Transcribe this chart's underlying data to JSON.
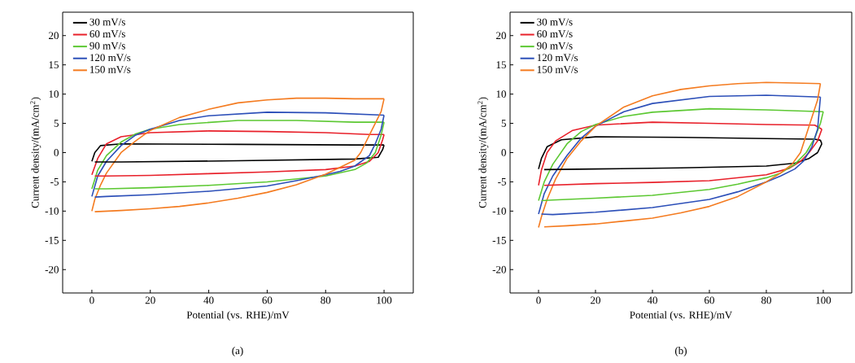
{
  "chart_data": [
    {
      "type": "line",
      "xlabel": "Potential (vs. RHE)/mV",
      "ylabel": "Current density/(mA/cm$^{2}$)",
      "annotations": [
        "(a)"
      ],
      "xlim": [
        -10,
        110
      ],
      "ylim": [
        -24,
        24
      ],
      "xticks": [
        0,
        20,
        40,
        60,
        80,
        100
      ],
      "yticks": [
        -20,
        -15,
        -10,
        -5,
        0,
        5,
        10,
        15,
        20
      ],
      "legend": "top left",
      "grid": false,
      "series": [
        {
          "name": "30 mV/s",
          "color": "#000000",
          "x": [
            0,
            1,
            3,
            10,
            50,
            90,
            100
          ],
          "values": [
            -1.5,
            0,
            1.2,
            1.5,
            1.4,
            1.3,
            1.3
          ]
        },
        {
          "name": "60 mV/s",
          "color": "#e8202a",
          "x": [
            0,
            2,
            5,
            10,
            20,
            40,
            60,
            80,
            95,
            100
          ],
          "values": [
            -3.8,
            -1,
            1.5,
            2.7,
            3.4,
            3.7,
            3.6,
            3.4,
            3.1,
            3.1
          ]
        },
        {
          "name": "90 mV/s",
          "color": "#5cc832",
          "x": [
            0,
            2,
            5,
            10,
            15,
            20,
            30,
            50,
            70,
            90,
            100
          ],
          "values": [
            -6.2,
            -3,
            -0.5,
            1.8,
            3.2,
            4,
            4.8,
            5.5,
            5.5,
            5.2,
            5.2
          ]
        },
        {
          "name": "120 mV/s",
          "color": "#2c4fb8",
          "x": [
            0,
            2,
            5,
            10,
            15,
            20,
            30,
            40,
            60,
            80,
            100
          ],
          "values": [
            -7.5,
            -4,
            -1.5,
            1.2,
            3,
            4,
            5.5,
            6.3,
            6.9,
            6.8,
            6.4
          ]
        },
        {
          "name": "150 mV/s",
          "color": "#f47b20",
          "x": [
            0,
            1,
            3,
            5,
            10,
            15,
            20,
            30,
            40,
            50,
            60,
            70,
            80,
            90,
            100
          ],
          "values": [
            -10,
            -8,
            -5.5,
            -3.5,
            0,
            2,
            3.8,
            6,
            7.4,
            8.5,
            9,
            9.3,
            9.3,
            9.2,
            9.2
          ]
        },
        {
          "color": "#000000",
          "x": [
            1,
            10,
            50,
            90,
            98,
            99.5,
            100
          ],
          "values": [
            -1.6,
            -1.6,
            -1.4,
            -1.1,
            -0.8,
            0.5,
            1.3
          ]
        },
        {
          "color": "#e8202a",
          "x": [
            1,
            5,
            20,
            40,
            60,
            80,
            90,
            95,
            98,
            99.5,
            100
          ],
          "values": [
            -4,
            -4,
            -3.9,
            -3.6,
            -3.3,
            -2.9,
            -2.3,
            -1.5,
            0,
            2.2,
            3.1
          ]
        },
        {
          "color": "#5cc832",
          "x": [
            1,
            5,
            20,
            40,
            60,
            80,
            90,
            94,
            97,
            99,
            100
          ],
          "values": [
            -6.2,
            -6.2,
            -6,
            -5.6,
            -5,
            -4,
            -2.9,
            -1.8,
            0,
            3,
            5.2
          ]
        },
        {
          "color": "#2c4fb8",
          "x": [
            1,
            5,
            20,
            40,
            60,
            70,
            80,
            85,
            90,
            95,
            97,
            99,
            100
          ],
          "values": [
            -7.6,
            -7.5,
            -7.2,
            -6.6,
            -5.7,
            -4.8,
            -3.8,
            -3.2,
            -2.3,
            -0.5,
            1.5,
            4,
            6.4
          ]
        },
        {
          "color": "#f47b20",
          "x": [
            1,
            10,
            20,
            30,
            40,
            50,
            60,
            70,
            80,
            85,
            90,
            92,
            95,
            97,
            99,
            100
          ],
          "values": [
            -10.1,
            -9.9,
            -9.6,
            -9.2,
            -8.6,
            -7.8,
            -6.8,
            -5.5,
            -3.7,
            -2.5,
            -1.3,
            0,
            3,
            5,
            7,
            9.2
          ]
        }
      ]
    },
    {
      "type": "line",
      "xlabel": "Potential (vs. RHE)/mV",
      "ylabel": "Current density/(mA/cm$^{2}$)",
      "annotations": [
        "(b)"
      ],
      "xlim": [
        -10,
        110
      ],
      "ylim": [
        -24,
        24
      ],
      "xticks": [
        0,
        20,
        40,
        60,
        80,
        100
      ],
      "yticks": [
        -20,
        -15,
        -10,
        -5,
        0,
        5,
        10,
        15,
        20
      ],
      "legend": "top left",
      "grid": false,
      "series": [
        {
          "name": "30 mV/s",
          "color": "#000000",
          "x": [
            0,
            1,
            3,
            8,
            20,
            50,
            80,
            97,
            99,
            99.5
          ],
          "values": [
            -2.8,
            -1,
            1,
            2.2,
            2.7,
            2.6,
            2.4,
            2.3,
            2.1,
            1.5
          ]
        },
        {
          "name": "60 mV/s",
          "color": "#e8202a",
          "x": [
            0,
            1,
            3,
            6,
            12,
            20,
            40,
            60,
            80,
            97,
            99.5
          ],
          "values": [
            -5.6,
            -3,
            0,
            2,
            3.8,
            4.7,
            5.2,
            5,
            4.8,
            4.7,
            4
          ]
        },
        {
          "name": "90 mV/s",
          "color": "#5cc832",
          "x": [
            0,
            2,
            5,
            10,
            15,
            20,
            30,
            40,
            60,
            80,
            100
          ],
          "values": [
            -8.2,
            -5,
            -2,
            1.5,
            3.6,
            4.8,
            6.2,
            6.9,
            7.5,
            7.3,
            7
          ]
        },
        {
          "name": "120 mV/s",
          "color": "#2c4fb8",
          "x": [
            0,
            2,
            5,
            10,
            15,
            20,
            30,
            40,
            60,
            80,
            99
          ],
          "values": [
            -10.5,
            -7,
            -4,
            -0.5,
            2.5,
            4.5,
            7,
            8.4,
            9.6,
            9.8,
            9.5
          ]
        },
        {
          "name": "150 mV/s",
          "color": "#f47b20",
          "x": [
            0,
            1,
            3,
            6,
            10,
            15,
            20,
            30,
            40,
            50,
            60,
            70,
            80,
            90,
            99
          ],
          "values": [
            -12.8,
            -11,
            -8,
            -4.5,
            -1,
            2,
            4.5,
            7.8,
            9.7,
            10.8,
            11.4,
            11.8,
            12,
            11.9,
            11.8
          ]
        },
        {
          "color": "#000000",
          "x": [
            2,
            20,
            50,
            80,
            90,
            95,
            98,
            99.5
          ],
          "values": [
            -2.9,
            -2.8,
            -2.6,
            -2.3,
            -1.8,
            -1,
            0,
            1.5
          ]
        },
        {
          "color": "#e8202a",
          "x": [
            2,
            20,
            40,
            60,
            80,
            88,
            92,
            95,
            98,
            99.5
          ],
          "values": [
            -5.6,
            -5.3,
            -5.1,
            -4.8,
            -3.8,
            -2.7,
            -1.5,
            0,
            2,
            4
          ]
        },
        {
          "color": "#5cc832",
          "x": [
            1,
            5,
            20,
            40,
            60,
            70,
            80,
            85,
            90,
            94,
            97,
            99,
            100
          ],
          "values": [
            -8.2,
            -8.1,
            -7.8,
            -7.3,
            -6.3,
            -5.4,
            -4.3,
            -3.5,
            -2,
            0,
            2.5,
            5,
            7
          ]
        },
        {
          "color": "#2c4fb8",
          "x": [
            1,
            5,
            20,
            40,
            60,
            70,
            80,
            85,
            90,
            93,
            96,
            98,
            99
          ],
          "values": [
            -10.5,
            -10.6,
            -10.2,
            -9.4,
            -8,
            -6.7,
            -5,
            -4,
            -2.8,
            -1.5,
            1,
            4,
            9.5
          ]
        },
        {
          "color": "#f47b20",
          "x": [
            2,
            10,
            20,
            30,
            40,
            50,
            60,
            70,
            80,
            85,
            89,
            92,
            94,
            96,
            98,
            99
          ],
          "values": [
            -12.7,
            -12.5,
            -12.2,
            -11.7,
            -11.2,
            -10.3,
            -9.2,
            -7.5,
            -5,
            -3.5,
            -2,
            0,
            3,
            6,
            9,
            11.8
          ]
        }
      ]
    }
  ]
}
